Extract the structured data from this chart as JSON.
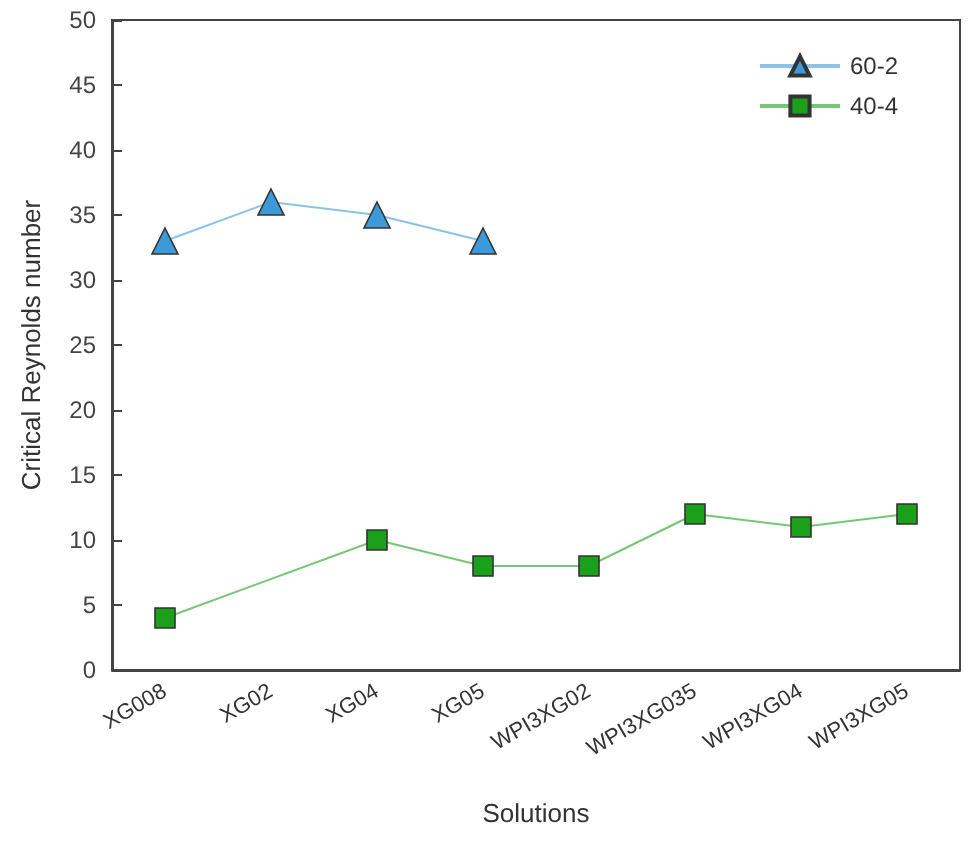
{
  "chart_data": {
    "type": "line",
    "xlabel": "Solutions",
    "ylabel": "Critical Reynolds number",
    "categories": [
      "XG008",
      "XG02",
      "XG04",
      "XG05",
      "WPI3XG02",
      "WPI3XG035",
      "WPI3XG04",
      "WPI3XG05"
    ],
    "series": [
      {
        "name": "60-2",
        "color": "#3d9ad9",
        "marker": "triangle",
        "values": [
          33,
          36,
          35,
          33,
          null,
          null,
          null,
          null
        ]
      },
      {
        "name": "40-4",
        "color": "#1aa01a",
        "marker": "square",
        "values": [
          4,
          null,
          10,
          8,
          8,
          12,
          11,
          12
        ]
      }
    ],
    "ylim": [
      0,
      50
    ],
    "yticks": [
      0,
      5,
      10,
      15,
      20,
      25,
      30,
      35,
      40,
      45,
      50
    ],
    "grid": false,
    "legend": "top right",
    "line_style": "solid"
  }
}
